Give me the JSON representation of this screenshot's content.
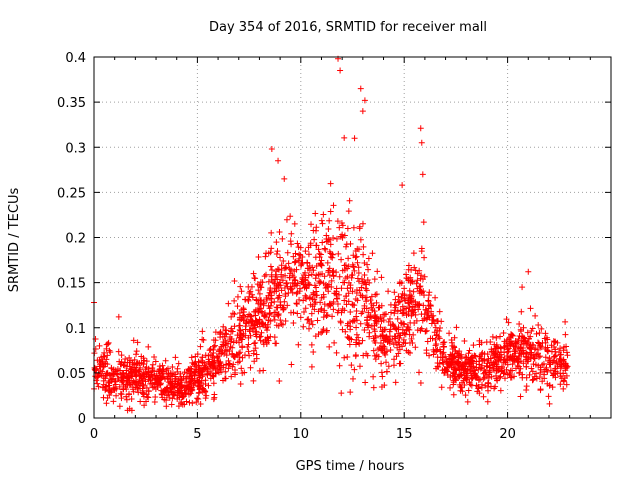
{
  "chart_data": {
    "type": "scatter",
    "title": "Day 354 of 2016, SRMTID for receiver mall",
    "xlabel": "GPS time / hours",
    "ylabel": "SRMTID / TECUs",
    "xlim": [
      0,
      25
    ],
    "ylim": [
      0,
      0.4
    ],
    "x_ticks": [
      0,
      5,
      10,
      15,
      20
    ],
    "x_tick_labels": [
      "0",
      "5",
      "10",
      "15",
      "20"
    ],
    "y_ticks": [
      0,
      0.05,
      0.1,
      0.15,
      0.2,
      0.25,
      0.3,
      0.35,
      0.4
    ],
    "y_tick_labels": [
      "0",
      "0.05",
      "0.1",
      "0.15",
      "0.2",
      "0.25",
      "0.3",
      "0.35",
      "0.4"
    ],
    "grid": true,
    "marker": "+",
    "series_color": "#ff0000",
    "profile_hours": [
      0,
      1,
      2,
      3,
      4,
      5,
      6,
      7,
      8,
      9,
      10,
      11,
      12,
      13,
      14,
      15,
      16,
      17,
      18,
      19,
      20,
      21,
      22,
      22.9
    ],
    "profile_median": [
      0.055,
      0.045,
      0.045,
      0.042,
      0.035,
      0.045,
      0.065,
      0.09,
      0.11,
      0.14,
      0.16,
      0.15,
      0.15,
      0.14,
      0.08,
      0.11,
      0.13,
      0.06,
      0.05,
      0.055,
      0.07,
      0.075,
      0.06,
      0.06
    ],
    "profile_spread": [
      0.03,
      0.025,
      0.025,
      0.02,
      0.02,
      0.025,
      0.03,
      0.04,
      0.06,
      0.06,
      0.05,
      0.07,
      0.09,
      0.08,
      0.04,
      0.05,
      0.06,
      0.03,
      0.02,
      0.025,
      0.03,
      0.035,
      0.03,
      0.03
    ],
    "spikes": [
      {
        "x": 0.0,
        "y": 0.128
      },
      {
        "x": 1.2,
        "y": 0.112
      },
      {
        "x": 8.6,
        "y": 0.298
      },
      {
        "x": 8.9,
        "y": 0.285
      },
      {
        "x": 9.2,
        "y": 0.265
      },
      {
        "x": 11.8,
        "y": 0.398
      },
      {
        "x": 11.9,
        "y": 0.385
      },
      {
        "x": 12.9,
        "y": 0.365
      },
      {
        "x": 13.1,
        "y": 0.352
      },
      {
        "x": 13.0,
        "y": 0.34
      },
      {
        "x": 12.6,
        "y": 0.31
      },
      {
        "x": 14.9,
        "y": 0.258
      },
      {
        "x": 15.8,
        "y": 0.321
      },
      {
        "x": 15.85,
        "y": 0.305
      },
      {
        "x": 15.9,
        "y": 0.27
      },
      {
        "x": 21.0,
        "y": 0.162
      },
      {
        "x": 20.7,
        "y": 0.145
      }
    ],
    "num_points": 2400,
    "random_seed": 354
  }
}
